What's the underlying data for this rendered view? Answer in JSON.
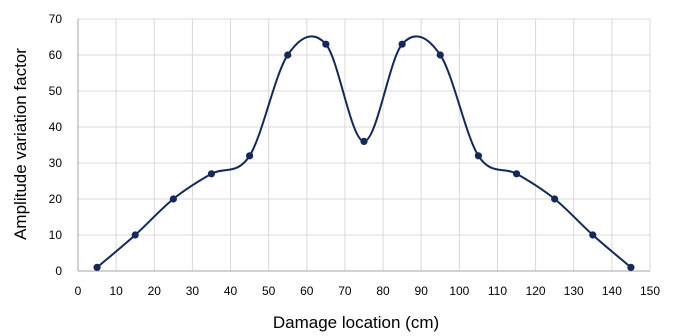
{
  "chart_data": {
    "type": "line",
    "title": "",
    "xlabel": "Damage location (cm)",
    "ylabel": "Amplitude variation factor",
    "xlim": [
      0,
      150
    ],
    "ylim": [
      0,
      70
    ],
    "x_ticks": [
      "0",
      "10",
      "20",
      "30",
      "40",
      "50",
      "60",
      "70",
      "80",
      "90",
      "100",
      "110",
      "120",
      "130",
      "140",
      "150"
    ],
    "y_ticks": [
      "0",
      "10",
      "20",
      "30",
      "40",
      "50",
      "60",
      "70"
    ],
    "grid": true,
    "legend": "none",
    "series": [
      {
        "color": "#14285c",
        "smooth": true,
        "markers": true,
        "x": [
          5,
          15,
          25,
          35,
          45,
          55,
          65,
          75,
          85,
          95,
          105,
          115,
          125,
          135,
          145
        ],
        "y": [
          1,
          10,
          20,
          27,
          32,
          60,
          63,
          36,
          63,
          60,
          32,
          27,
          20,
          10,
          1
        ]
      }
    ]
  },
  "colors": {
    "grid": "#d9d9d9",
    "axis": "#a6a6a6",
    "series": "#14285c"
  }
}
